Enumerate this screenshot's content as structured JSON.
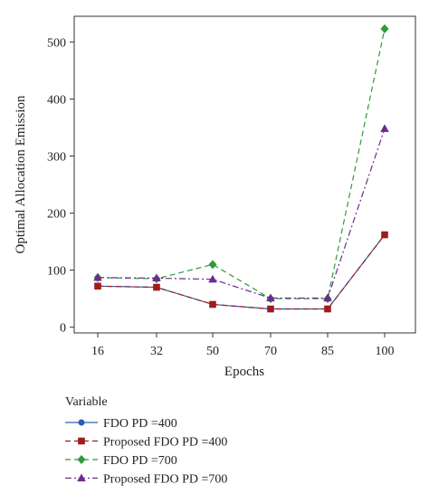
{
  "chart_data": {
    "type": "line",
    "xlabel": "Epochs",
    "ylabel": "Optimal Allocation Emission",
    "categories": [
      "16",
      "32",
      "50",
      "70",
      "85",
      "100"
    ],
    "ylim": [
      -10,
      545
    ],
    "yticks": [
      0,
      100,
      200,
      300,
      400,
      500
    ],
    "grid": false,
    "legend_title": "Variable",
    "legend_position": "bottom",
    "series": [
      {
        "name": "FDO PD =400",
        "values": [
          72,
          70,
          40,
          32,
          32,
          162
        ],
        "color": "#2a5db0",
        "marker": "circle",
        "dash": "solid"
      },
      {
        "name": "Proposed FDO PD =400",
        "values": [
          72,
          70,
          40,
          32,
          32,
          162
        ],
        "color": "#a01c1c",
        "marker": "square",
        "dash": "dash"
      },
      {
        "name": "FDO PD =700",
        "values": [
          87,
          85,
          110,
          50,
          50,
          523
        ],
        "color": "#2e9a3a",
        "marker": "diamond",
        "dash": "dash"
      },
      {
        "name": "Proposed FDO PD =700",
        "values": [
          87,
          86,
          84,
          51,
          51,
          348
        ],
        "color": "#6a2c91",
        "marker": "triangle",
        "dash": "dashdot"
      }
    ]
  }
}
